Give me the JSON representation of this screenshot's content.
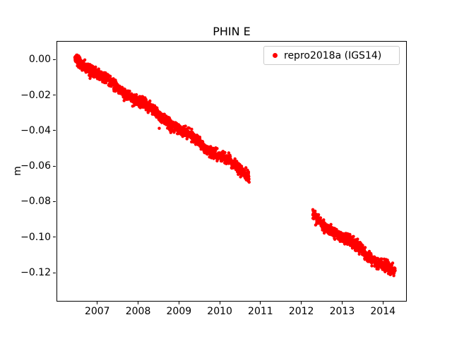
{
  "chart_data": {
    "type": "scatter",
    "title": "PHIN E",
    "xlabel": "",
    "ylabel": "m",
    "xlim": [
      2006.0,
      2014.55
    ],
    "ylim": [
      -0.1355,
      0.0105
    ],
    "grid": false,
    "marker_color": "#ff0000",
    "legend": {
      "label": "repro2018a (IGS14)",
      "position": "upper right"
    },
    "xticks": {
      "values": [
        2007,
        2008,
        2009,
        2010,
        2011,
        2012,
        2013,
        2014
      ],
      "labels": [
        "2007",
        "2008",
        "2009",
        "2010",
        "2011",
        "2012",
        "2013",
        "2014"
      ]
    },
    "yticks": {
      "values": [
        0.0,
        -0.02,
        -0.04,
        -0.06,
        -0.08,
        -0.1,
        -0.12
      ],
      "labels": [
        "0.00",
        "−0.02",
        "−0.04",
        "−0.06",
        "−0.08",
        "−0.10",
        "−0.12"
      ]
    },
    "series": [
      {
        "name": "repro2018a (IGS14)",
        "annual_amplitude": 0.001,
        "noise_std": 0.0015,
        "segments": [
          {
            "x_start": 2006.45,
            "x_end": 2010.72,
            "y_start": 0.0005,
            "y_end": -0.0655,
            "n_points": 1500
          },
          {
            "x_start": 2012.28,
            "x_end": 2014.3,
            "y_start": -0.0885,
            "y_end": -0.1205,
            "n_points": 720
          }
        ]
      }
    ]
  }
}
